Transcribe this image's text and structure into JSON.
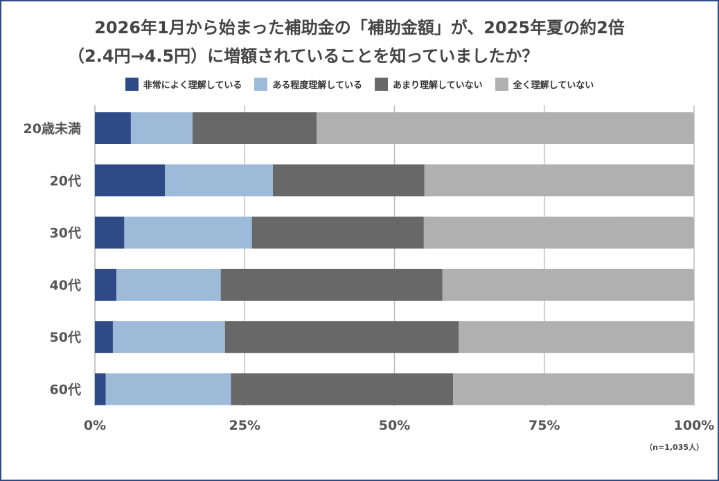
{
  "chart_data": {
    "type": "bar",
    "orientation": "horizontal",
    "stacked": true,
    "title_line1": "2026年1月から始まった補助金の「補助金額」が、2025年夏の約2倍",
    "title_line2": "（2.4円→4.5円）に増額されていることを知っていましたか？",
    "categories": [
      "20歳未満",
      "20代",
      "30代",
      "40代",
      "50代",
      "60代"
    ],
    "series": [
      {
        "name": "非常によく理解している",
        "color": "#2e4a87",
        "values": [
          6.0,
          11.7,
          4.9,
          3.6,
          3.0,
          1.8
        ]
      },
      {
        "name": "ある程度理解している",
        "color": "#9dbbd9",
        "values": [
          10.3,
          18.0,
          21.3,
          17.4,
          18.7,
          20.9
        ]
      },
      {
        "name": "あまり理解していない",
        "color": "#686868",
        "values": [
          20.7,
          25.3,
          28.7,
          37.0,
          39.0,
          37.1
        ]
      },
      {
        "name": "全く理解していない",
        "color": "#b0b0b0",
        "values": [
          63.0,
          45.0,
          45.1,
          42.0,
          39.3,
          40.2
        ]
      }
    ],
    "xlim": [
      0,
      100
    ],
    "x_ticks": [
      "0%",
      "25%",
      "50%",
      "75%",
      "100%"
    ],
    "grid": true,
    "legend_position": "top",
    "note": "（n=1,035人）"
  }
}
